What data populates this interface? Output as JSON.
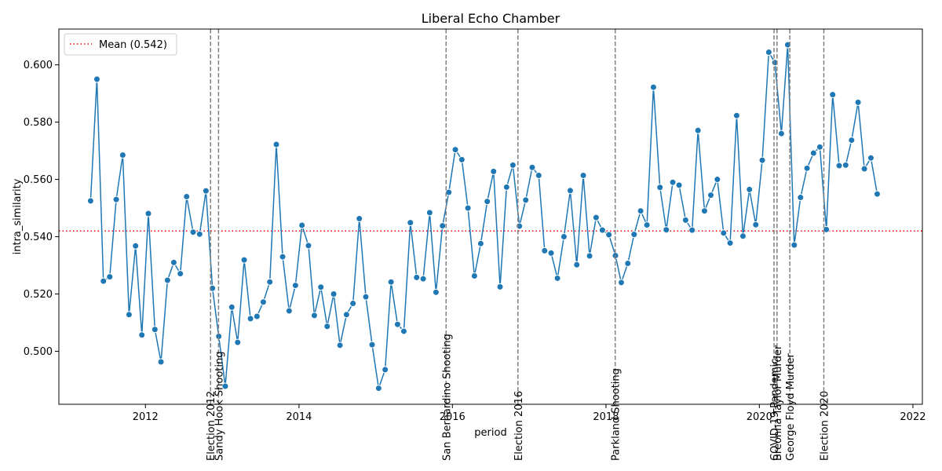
{
  "chart_data": {
    "type": "line",
    "title": "Liberal Echo Chamber",
    "xlabel": "period",
    "ylabel": "intra_similarity",
    "xlim": [
      "2010-11-15",
      "2022-02-15"
    ],
    "ylim": [
      0.4815,
      0.6125
    ],
    "x_ticks": [
      "2012",
      "2014",
      "2016",
      "2018",
      "2020",
      "2022"
    ],
    "y_ticks": [
      "0.500",
      "0.520",
      "0.540",
      "0.560",
      "0.580",
      "0.600"
    ],
    "grid": false,
    "legend": {
      "position": "top-left",
      "entries": [
        "Mean (0.542)"
      ]
    },
    "mean_line": {
      "label": "Mean (0.542)",
      "value": 0.542,
      "color": "#ff0000"
    },
    "series": [
      {
        "color": "#1f77b4",
        "points": [
          [
            "2011-04",
            0.5525
          ],
          [
            "2011-05",
            0.595
          ],
          [
            "2011-06",
            0.5245
          ],
          [
            "2011-07",
            0.526
          ],
          [
            "2011-08",
            0.553
          ],
          [
            "2011-09",
            0.5685
          ],
          [
            "2011-10",
            0.5128
          ],
          [
            "2011-11",
            0.5368
          ],
          [
            "2011-12",
            0.5057
          ],
          [
            "2012-01",
            0.5481
          ],
          [
            "2012-02",
            0.5076
          ],
          [
            "2012-03",
            0.4963
          ],
          [
            "2012-04",
            0.5248
          ],
          [
            "2012-05",
            0.531
          ],
          [
            "2012-06",
            0.5271
          ],
          [
            "2012-07",
            0.554
          ],
          [
            "2012-08",
            0.5416
          ],
          [
            "2012-09",
            0.5409
          ],
          [
            "2012-10",
            0.556
          ],
          [
            "2012-11",
            0.522
          ],
          [
            "2012-12",
            0.5052
          ],
          [
            "2013-01",
            0.4878
          ],
          [
            "2013-02",
            0.5154
          ],
          [
            "2013-03",
            0.5031
          ],
          [
            "2013-04",
            0.5319
          ],
          [
            "2013-05",
            0.5114
          ],
          [
            "2013-06",
            0.5122
          ],
          [
            "2013-07",
            0.5172
          ],
          [
            "2013-08",
            0.5242
          ],
          [
            "2013-09",
            0.5722
          ],
          [
            "2013-10",
            0.533
          ],
          [
            "2013-11",
            0.5141
          ],
          [
            "2013-12",
            0.523
          ],
          [
            "2014-01",
            0.544
          ],
          [
            "2014-02",
            0.5369
          ],
          [
            "2014-03",
            0.5125
          ],
          [
            "2014-04",
            0.5224
          ],
          [
            "2014-05",
            0.5087
          ],
          [
            "2014-06",
            0.52
          ],
          [
            "2014-07",
            0.5021
          ],
          [
            "2014-08",
            0.5128
          ],
          [
            "2014-09",
            0.5167
          ],
          [
            "2014-10",
            0.5463
          ],
          [
            "2014-11",
            0.519
          ],
          [
            "2014-12",
            0.5023
          ],
          [
            "2015-01",
            0.4871
          ],
          [
            "2015-02",
            0.4936
          ],
          [
            "2015-03",
            0.5242
          ],
          [
            "2015-04",
            0.5094
          ],
          [
            "2015-05",
            0.507
          ],
          [
            "2015-06",
            0.5449
          ],
          [
            "2015-07",
            0.5258
          ],
          [
            "2015-08",
            0.5253
          ],
          [
            "2015-09",
            0.5484
          ],
          [
            "2015-10",
            0.5206
          ],
          [
            "2015-11",
            0.5438
          ],
          [
            "2015-12",
            0.5555
          ],
          [
            "2016-01",
            0.5704
          ],
          [
            "2016-02",
            0.5669
          ],
          [
            "2016-03",
            0.55
          ],
          [
            "2016-04",
            0.5263
          ],
          [
            "2016-05",
            0.5376
          ],
          [
            "2016-06",
            0.5523
          ],
          [
            "2016-07",
            0.5628
          ],
          [
            "2016-08",
            0.5225
          ],
          [
            "2016-09",
            0.5573
          ],
          [
            "2016-10",
            0.565
          ],
          [
            "2016-11",
            0.5437
          ],
          [
            "2016-12",
            0.5528
          ],
          [
            "2017-01",
            0.5642
          ],
          [
            "2017-02",
            0.5614
          ],
          [
            "2017-03",
            0.5351
          ],
          [
            "2017-04",
            0.5343
          ],
          [
            "2017-05",
            0.5255
          ],
          [
            "2017-06",
            0.54
          ],
          [
            "2017-07",
            0.5561
          ],
          [
            "2017-08",
            0.5302
          ],
          [
            "2017-09",
            0.5614
          ],
          [
            "2017-10",
            0.5333
          ],
          [
            "2017-11",
            0.5467
          ],
          [
            "2017-12",
            0.5423
          ],
          [
            "2018-01",
            0.5407
          ],
          [
            "2018-02",
            0.5334
          ],
          [
            "2018-03",
            0.524
          ],
          [
            "2018-04",
            0.5307
          ],
          [
            "2018-05",
            0.5408
          ],
          [
            "2018-06",
            0.549
          ],
          [
            "2018-07",
            0.5441
          ],
          [
            "2018-08",
            0.5922
          ],
          [
            "2018-09",
            0.5572
          ],
          [
            "2018-10",
            0.5424
          ],
          [
            "2018-11",
            0.559
          ],
          [
            "2018-12",
            0.558
          ],
          [
            "2019-01",
            0.5458
          ],
          [
            "2019-02",
            0.5423
          ],
          [
            "2019-03",
            0.5771
          ],
          [
            "2019-04",
            0.549
          ],
          [
            "2019-05",
            0.5545
          ],
          [
            "2019-06",
            0.56
          ],
          [
            "2019-07",
            0.5413
          ],
          [
            "2019-08",
            0.5378
          ],
          [
            "2019-09",
            0.5823
          ],
          [
            "2019-10",
            0.5402
          ],
          [
            "2019-11",
            0.5565
          ],
          [
            "2019-12",
            0.5442
          ],
          [
            "2020-01",
            0.5667
          ],
          [
            "2020-02",
            0.6044
          ],
          [
            "2020-03",
            0.6008
          ],
          [
            "2020-04",
            0.576
          ],
          [
            "2020-05",
            0.607
          ],
          [
            "2020-06",
            0.5371
          ],
          [
            "2020-07",
            0.5537
          ],
          [
            "2020-08",
            0.5639
          ],
          [
            "2020-09",
            0.5692
          ],
          [
            "2020-10",
            0.5713
          ],
          [
            "2020-11",
            0.5425
          ],
          [
            "2020-12",
            0.5896
          ],
          [
            "2021-01",
            0.5648
          ],
          [
            "2021-02",
            0.565
          ],
          [
            "2021-03",
            0.5737
          ],
          [
            "2021-04",
            0.5869
          ],
          [
            "2021-05",
            0.5637
          ],
          [
            "2021-06",
            0.5675
          ],
          [
            "2021-07",
            0.5549
          ]
        ]
      }
    ],
    "events": [
      {
        "date": "2012-11-06",
        "label": "Election 2012"
      },
      {
        "date": "2012-12-14",
        "label": "Sandy Hook Shooting"
      },
      {
        "date": "2015-12-02",
        "label": "San Bernardino Shooting"
      },
      {
        "date": "2016-11-08",
        "label": "Election 2016"
      },
      {
        "date": "2018-02-14",
        "label": "Parkland Shooting"
      },
      {
        "date": "2020-03-11",
        "label": "COVID-19 Pandemic"
      },
      {
        "date": "2020-03-25",
        "label": "Breonna Taylor Murder"
      },
      {
        "date": "2020-05-25",
        "label": "George Floyd Murder"
      },
      {
        "date": "2020-11-03",
        "label": "Election 2020"
      }
    ]
  }
}
